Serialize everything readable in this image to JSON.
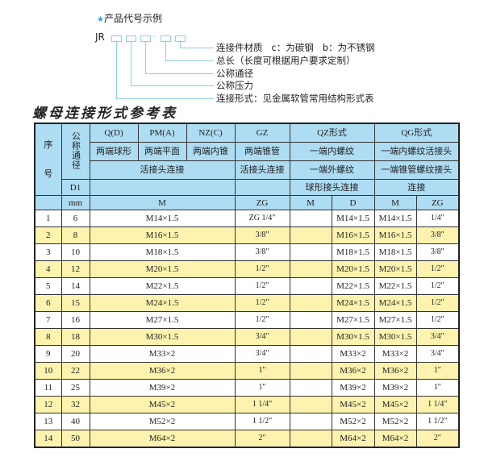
{
  "legend": {
    "star_icon": "star-icon",
    "title": "产品代号示例",
    "code_prefix": "JR",
    "dash": "-",
    "labels": [
      "连接件材质   c：为碳钢   b：为不锈钢",
      "总长（长度可根据用户要求定制）",
      "公称通径",
      "公称压力",
      "连接形式：见金属软管常用结构形式表"
    ]
  },
  "table_title": "螺母连接形式参考表",
  "colors": {
    "header_bg": "#aedcf3",
    "stripe": "#fdf3ae",
    "accent": "#2a9fd6"
  },
  "header": {
    "seq": "序",
    "seq2": "号",
    "dn": "公称通径",
    "d1": "D1",
    "mm": "mm",
    "qd": "Q(D)",
    "pm": "PM(A)",
    "nz": "NZ(C)",
    "gz": "GZ",
    "qz": "QZ形式",
    "qg": "QG形式",
    "qd2": "两端球形",
    "pm2": "两端平面",
    "nz2": "两端内锥",
    "gz2": "两端锥管",
    "qz2": "一端内螺纹",
    "qg2": "一端内螺纹活接头",
    "union": "活接头连接",
    "gz3": "活接头连接",
    "qz3": "一端外螺纹",
    "qg3": "一端锥管螺纹接头",
    "qz4": "球形接头连接",
    "qg4": "连接",
    "m": "M",
    "zg": "ZG",
    "qz_m": "M",
    "qz_d": "D",
    "qg_m": "M",
    "qg_zg": "ZG"
  },
  "rows": [
    {
      "no": "1",
      "dn": "6",
      "m": "M14×1.5",
      "zg": "ZG 1/4\"",
      "qz_m": "",
      "qz_d": "M14×1.5",
      "qg_m": "M14×1.5",
      "qg_zg": "1/4\""
    },
    {
      "no": "2",
      "dn": "8",
      "m": "M16×1.5",
      "zg": "3/8\"",
      "qz_m": "",
      "qz_d": "M16×1.5",
      "qg_m": "M16×1.5",
      "qg_zg": "3/8\""
    },
    {
      "no": "3",
      "dn": "10",
      "m": "M18×1.5",
      "zg": "3/8\"",
      "qz_m": "",
      "qz_d": "M18×1.5",
      "qg_m": "M18×1.5",
      "qg_zg": "3/8\""
    },
    {
      "no": "4",
      "dn": "12",
      "m": "M20×1.5",
      "zg": "1/2\"",
      "qz_m": "",
      "qz_d": "M20×1.5",
      "qg_m": "M20×1.5",
      "qg_zg": "1/2\""
    },
    {
      "no": "5",
      "dn": "14",
      "m": "M22×1.5",
      "zg": "1/2\"",
      "qz_m": "",
      "qz_d": "M22×1.5",
      "qg_m": "M22×1.5",
      "qg_zg": "1/2\""
    },
    {
      "no": "6",
      "dn": "15",
      "m": "M24×1.5",
      "zg": "1/2\"",
      "qz_m": "",
      "qz_d": "M24×1.5",
      "qg_m": "M24×1.5",
      "qg_zg": "1/2\""
    },
    {
      "no": "7",
      "dn": "16",
      "m": "M27×1.5",
      "zg": "1/2\"",
      "qz_m": "",
      "qz_d": "M27×1.5",
      "qg_m": "M27×1.5",
      "qg_zg": "1/2\""
    },
    {
      "no": "8",
      "dn": "18",
      "m": "M30×1.5",
      "zg": "3/4\"",
      "qz_m": "",
      "qz_d": "M30×1.5",
      "qg_m": "M30×1.5",
      "qg_zg": "3/4\""
    },
    {
      "no": "9",
      "dn": "20",
      "m": "M33×2",
      "zg": "3/4\"",
      "qz_m": "",
      "qz_d": "M33×2",
      "qg_m": "M33×2",
      "qg_zg": "3/4\""
    },
    {
      "no": "10",
      "dn": "22",
      "m": "M36×2",
      "zg": "1\"",
      "qz_m": "",
      "qz_d": "M36×2",
      "qg_m": "M36×2",
      "qg_zg": "1\""
    },
    {
      "no": "11",
      "dn": "25",
      "m": "M39×2",
      "zg": "1\"",
      "qz_m": "",
      "qz_d": "M39×2",
      "qg_m": "M39×2",
      "qg_zg": "1\""
    },
    {
      "no": "12",
      "dn": "32",
      "m": "M45×2",
      "zg": "1 1/4\"",
      "qz_m": "",
      "qz_d": "M45×2",
      "qg_m": "M45×2",
      "qg_zg": "1 1/4\""
    },
    {
      "no": "13",
      "dn": "40",
      "m": "M52×2",
      "zg": "1 1/2\"",
      "qz_m": "",
      "qz_d": "M52×2",
      "qg_m": "M52×2",
      "qg_zg": "1 1/2\""
    },
    {
      "no": "14",
      "dn": "50",
      "m": "M64×2",
      "zg": "2\"",
      "qz_m": "",
      "qz_d": "M64×2",
      "qg_m": "M64×2",
      "qg_zg": "2\""
    }
  ]
}
